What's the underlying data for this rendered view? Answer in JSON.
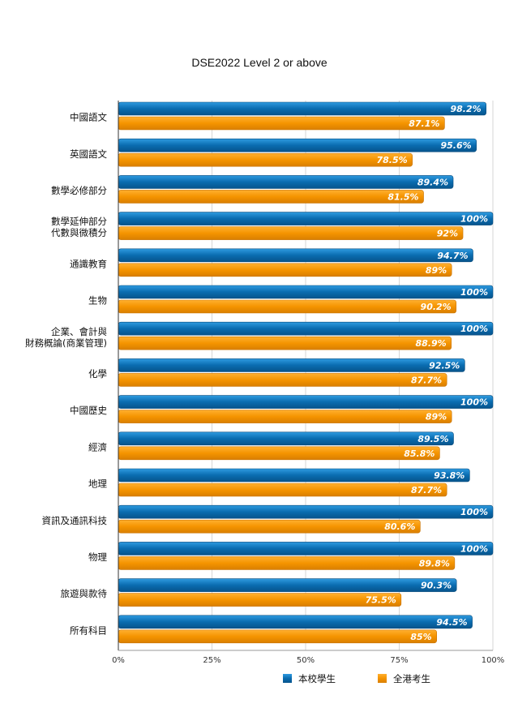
{
  "chart_data": {
    "type": "bar",
    "orientation": "horizontal",
    "title": "DSE2022 Level 2 or above",
    "categories": [
      [
        "中國語文"
      ],
      [
        "英國語文"
      ],
      [
        "數學必修部分"
      ],
      [
        "數學延伸部分",
        "代數與微積分"
      ],
      [
        "通識教育"
      ],
      [
        "生物"
      ],
      [
        "企業、會計與",
        "財務概論(商業管理)"
      ],
      [
        "化學"
      ],
      [
        "中國歷史"
      ],
      [
        "經濟"
      ],
      [
        "地理"
      ],
      [
        "資訊及通訊科技"
      ],
      [
        "物理"
      ],
      [
        "旅遊與款待"
      ],
      [
        "所有科目"
      ]
    ],
    "series": [
      {
        "name": "本校學生",
        "color": "#0a6cb0",
        "values": [
          98.2,
          95.6,
          89.4,
          100,
          94.7,
          100,
          100,
          92.5,
          100,
          89.5,
          93.8,
          100,
          100,
          90.3,
          94.5
        ],
        "labels": [
          "98.2%",
          "95.6%",
          "89.4%",
          "100%",
          "94.7%",
          "100%",
          "100%",
          "92.5%",
          "100%",
          "89.5%",
          "93.8%",
          "100%",
          "100%",
          "90.3%",
          "94.5%"
        ]
      },
      {
        "name": "全港考生",
        "color": "#f59400",
        "values": [
          87.1,
          78.5,
          81.5,
          92,
          89,
          90.2,
          88.9,
          87.7,
          89,
          85.8,
          87.7,
          80.6,
          89.8,
          75.5,
          85
        ],
        "labels": [
          "87.1%",
          "78.5%",
          "81.5%",
          "92%",
          "89%",
          "90.2%",
          "88.9%",
          "87.7%",
          "89%",
          "85.8%",
          "87.7%",
          "80.6%",
          "89.8%",
          "75.5%",
          "85%"
        ]
      }
    ],
    "xlim": [
      0,
      100
    ],
    "ticks": [
      0,
      25,
      50,
      75,
      100
    ],
    "tick_labels": [
      "0%",
      "25%",
      "50%",
      "75%",
      "100%"
    ],
    "grid": true,
    "legend_position": "bottom"
  }
}
